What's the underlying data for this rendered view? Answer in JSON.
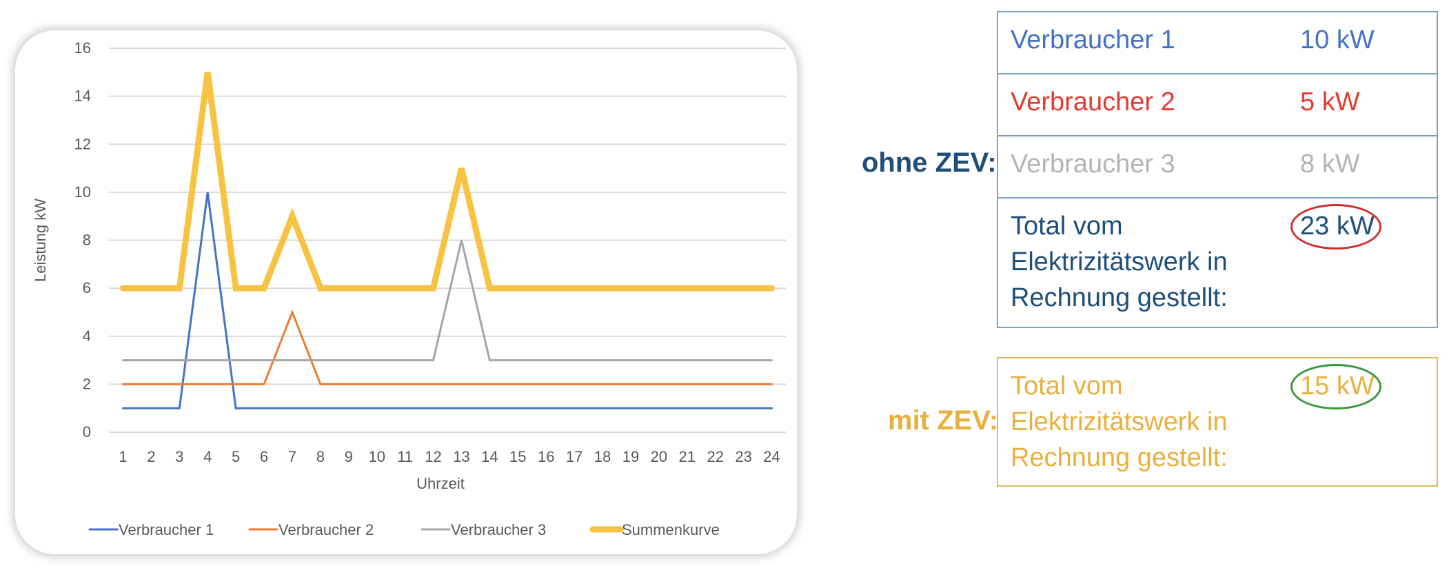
{
  "chart_data": {
    "type": "line",
    "xlabel": "Uhrzeit",
    "ylabel": "Leistung kW",
    "x": [
      1,
      2,
      3,
      4,
      5,
      6,
      7,
      8,
      9,
      10,
      11,
      12,
      13,
      14,
      15,
      16,
      17,
      18,
      19,
      20,
      21,
      22,
      23,
      24
    ],
    "ylim": [
      0,
      16
    ],
    "yticks": [
      0,
      2,
      4,
      6,
      8,
      10,
      12,
      14,
      16
    ],
    "grid": true,
    "legend_position": "bottom",
    "series": [
      {
        "name": "Verbraucher 1",
        "color": "#4472c4",
        "values": [
          1,
          1,
          1,
          10,
          1,
          1,
          1,
          1,
          1,
          1,
          1,
          1,
          1,
          1,
          1,
          1,
          1,
          1,
          1,
          1,
          1,
          1,
          1,
          1
        ]
      },
      {
        "name": "Verbraucher 2",
        "color": "#ed7d31",
        "values": [
          2,
          2,
          2,
          2,
          2,
          2,
          5,
          2,
          2,
          2,
          2,
          2,
          2,
          2,
          2,
          2,
          2,
          2,
          2,
          2,
          2,
          2,
          2,
          2
        ]
      },
      {
        "name": "Verbraucher 3",
        "color": "#a5a5a5",
        "values": [
          3,
          3,
          3,
          3,
          3,
          3,
          3,
          3,
          3,
          3,
          3,
          3,
          8,
          3,
          3,
          3,
          3,
          3,
          3,
          3,
          3,
          3,
          3,
          3
        ]
      },
      {
        "name": "Summenkurve",
        "color": "#f6c342",
        "values": [
          6,
          6,
          6,
          15,
          6,
          6,
          9,
          6,
          6,
          6,
          6,
          6,
          11,
          6,
          6,
          6,
          6,
          6,
          6,
          6,
          6,
          6,
          6,
          6
        ]
      }
    ]
  },
  "ohne_zev": {
    "label": "ohne ZEV:",
    "label_color": "#1f4e79",
    "rows": [
      {
        "name": "Verbraucher 1",
        "value": "10 kW",
        "color": "#4472c4"
      },
      {
        "name": "Verbraucher 2",
        "value": "5 kW",
        "color": "#e03c31"
      },
      {
        "name": "Verbraucher 3",
        "value": "8 kW",
        "color": "#b4b4b4"
      }
    ],
    "total": {
      "lines": [
        "Total vom",
        "Elektrizitätswerk in",
        "Rechnung gestellt:"
      ],
      "value": "23 kW",
      "color": "#1f4e79",
      "circle_color": "#d32f2f"
    }
  },
  "mit_zev": {
    "label": "mit ZEV:",
    "label_color": "#e8b13f",
    "total": {
      "lines": [
        "Total vom",
        "Elektrizitätswerk in",
        "Rechnung gestellt:"
      ],
      "value": "15 kW",
      "color": "#e8b13f",
      "circle_color": "#3a9a3a"
    }
  }
}
